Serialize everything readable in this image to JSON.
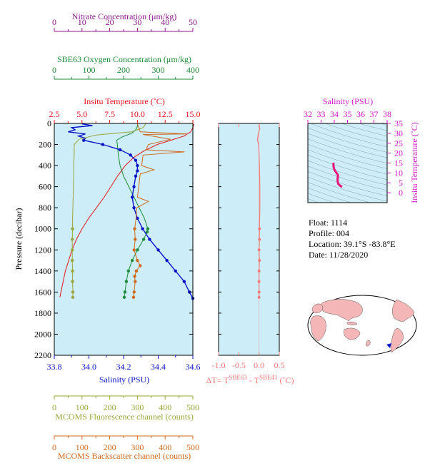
{
  "colors": {
    "panel_bg": "#cdeef8",
    "nitrate": "#8b1a8b",
    "oxygen": "#1e8c3a",
    "temperature": "#e8141e",
    "salinity": "#0a14c8",
    "fluorescence": "#9aa63a",
    "backscatter": "#d2691e",
    "delta": "#f47a7a",
    "ts_salinity": "#d41ac8",
    "ts_trace": "#e8147a",
    "land": "#f4b6b6"
  },
  "info": {
    "float": "Float:  1114",
    "profile": "Profile:  004",
    "location": "Location:  39.1°S  -83.8°E",
    "date": "Date:  11/28/2020"
  },
  "chart_data": [
    {
      "type": "line",
      "panel": "profile",
      "ylabel": "Pressure (decibar)",
      "ylim": [
        2200,
        0
      ],
      "yticks": [
        "0",
        "200",
        "400",
        "600",
        "800",
        "1000",
        "1200",
        "1400",
        "1600",
        "1800",
        "2000",
        "2200"
      ],
      "grid": false,
      "axes": {
        "nitrate": {
          "title": "Nitrate Concentration (μm/kg)",
          "range": [
            0,
            50
          ],
          "ticks": [
            "0",
            "10",
            "20",
            "30",
            "40",
            "50"
          ]
        },
        "oxygen": {
          "title": "SBE63 Oxygen Concentration (μm/kg)",
          "range": [
            0,
            400
          ],
          "ticks": [
            "0",
            "100",
            "200",
            "300",
            "400"
          ]
        },
        "temperature": {
          "title": "Insitu Temperature (˚C)",
          "range": [
            2.5,
            15.0
          ],
          "ticks": [
            "2.5",
            "5.0",
            "7.5",
            "10.0",
            "12.5",
            "15.0"
          ]
        },
        "salinity": {
          "title": "Salinity (PSU)",
          "range": [
            33.8,
            34.6
          ],
          "ticks": [
            "33.8",
            "34.0",
            "34.2",
            "34.4",
            "34.6"
          ]
        },
        "fluorescence": {
          "title": "MCOMS Fluorescence channel (counts)",
          "range": [
            0,
            500
          ],
          "ticks": [
            "0",
            "100",
            "200",
            "300",
            "400",
            "500"
          ]
        },
        "backscatter": {
          "title": "MCOMS Backscatter channel (counts)",
          "range": [
            0,
            500
          ],
          "ticks": [
            "0",
            "100",
            "200",
            "300",
            "400",
            "500"
          ]
        }
      },
      "series": [
        {
          "key": "temperature",
          "p": [
            5,
            40,
            80,
            120,
            160,
            200,
            260,
            320,
            400,
            500,
            600,
            700,
            800,
            900,
            1000,
            1100,
            1200,
            1300,
            1400,
            1500,
            1600,
            1650
          ],
          "v": [
            15.1,
            15.0,
            14.8,
            14.2,
            13.0,
            11.8,
            10.6,
            9.7,
            8.9,
            8.2,
            7.6,
            7.0,
            6.3,
            5.6,
            5.0,
            4.5,
            4.1,
            3.8,
            3.5,
            3.3,
            3.1,
            3.0
          ]
        },
        {
          "key": "oxygen",
          "p": [
            5,
            30,
            60,
            90,
            110,
            130,
            160,
            200,
            300,
            400,
            500,
            600,
            700,
            800,
            900,
            1000,
            1030,
            1100,
            1200,
            1300,
            1400,
            1500,
            1600,
            1650
          ],
          "v": [
            240,
            240,
            235,
            225,
            210,
            195,
            180,
            182,
            185,
            190,
            200,
            215,
            230,
            245,
            260,
            270,
            268,
            258,
            240,
            225,
            214,
            208,
            204,
            202
          ]
        },
        {
          "key": "salinity",
          "p": [
            5,
            20,
            40,
            60,
            80,
            100,
            120,
            140,
            160,
            200,
            250,
            300,
            350,
            400,
            450,
            500,
            600,
            700,
            800,
            900,
            1000,
            1100,
            1200,
            1300,
            1400,
            1500,
            1600,
            1660
          ],
          "v": [
            33.96,
            34.02,
            33.9,
            33.92,
            33.88,
            33.98,
            33.94,
            33.98,
            33.97,
            34.08,
            34.18,
            34.24,
            34.27,
            34.28,
            34.28,
            34.27,
            34.26,
            34.25,
            34.26,
            34.28,
            34.31,
            34.35,
            34.4,
            34.45,
            34.5,
            34.55,
            34.58,
            34.6
          ]
        },
        {
          "key": "fluorescence",
          "p": [
            5,
            40,
            80,
            110,
            150,
            200,
            300,
            400,
            500,
            600,
            700,
            800,
            900,
            1000,
            1100,
            1200,
            1300,
            1400,
            1500,
            1600,
            1650
          ],
          "v": [
            330,
            320,
            280,
            150,
            90,
            72,
            72,
            70,
            70,
            69,
            68,
            67,
            66,
            66,
            65,
            65,
            65,
            66,
            66,
            67,
            67
          ]
        },
        {
          "key": "backscatter",
          "p": [
            5,
            80,
            100,
            105,
            150,
            200,
            250,
            270,
            300,
            350,
            400,
            440,
            480,
            520,
            600,
            700,
            740,
            800,
            900,
            1000,
            1100,
            1200,
            1300,
            1350,
            1400,
            1450,
            1500,
            1600,
            1650
          ],
          "v": [
            300,
            310,
            480,
            320,
            420,
            340,
            330,
            470,
            320,
            318,
            315,
            360,
            310,
            308,
            305,
            300,
            340,
            298,
            295,
            290,
            292,
            288,
            300,
            310,
            296,
            290,
            292,
            288,
            286
          ]
        },
        {
          "key": "nitrate",
          "p": [],
          "v": []
        }
      ]
    },
    {
      "type": "line",
      "panel": "delta",
      "xlabel_parts": [
        "ΔT= T",
        "SBE63",
        " - T",
        "SBE41",
        " (˚C)"
      ],
      "xlim": [
        -1.0,
        0.5
      ],
      "xticks": [
        "-1.0",
        "-0.5",
        "0.0",
        "0.5"
      ],
      "ylim": [
        2200,
        0
      ],
      "series": [
        {
          "key": "delta",
          "p": [
            5,
            50,
            100,
            160,
            200,
            300,
            400,
            600,
            800,
            1000,
            1100,
            1200,
            1300,
            1400,
            1500,
            1600,
            1650
          ],
          "v": [
            0.0,
            0.02,
            -0.02,
            -0.04,
            -0.01,
            0.0,
            0.01,
            0.02,
            0.02,
            0.01,
            0.01,
            0.0,
            0.01,
            0.0,
            0.0,
            0.0,
            0.0
          ]
        }
      ]
    },
    {
      "type": "line",
      "panel": "ts",
      "xlabel": "Salinity (PSU)",
      "ylabel": "Insitu Temperature (˚C)",
      "xlim": [
        32,
        38
      ],
      "xticks": [
        "32",
        "33",
        "34",
        "35",
        "36",
        "37",
        "38"
      ],
      "ylim": [
        -5,
        35
      ],
      "yticks": [
        "0",
        "5",
        "10",
        "15",
        "20",
        "25",
        "30",
        "35"
      ],
      "series": [
        {
          "key": "ts_trace",
          "s": [
            34.6,
            34.5,
            34.4,
            34.3,
            34.26,
            34.25,
            34.27,
            34.28,
            34.2,
            34.1,
            34.0,
            33.95,
            33.93,
            33.96
          ],
          "t": [
            3.0,
            3.3,
            3.8,
            4.5,
            5.6,
            7.0,
            8.2,
            8.9,
            9.7,
            10.6,
            11.8,
            13.0,
            14.5,
            15.1
          ]
        }
      ]
    }
  ]
}
